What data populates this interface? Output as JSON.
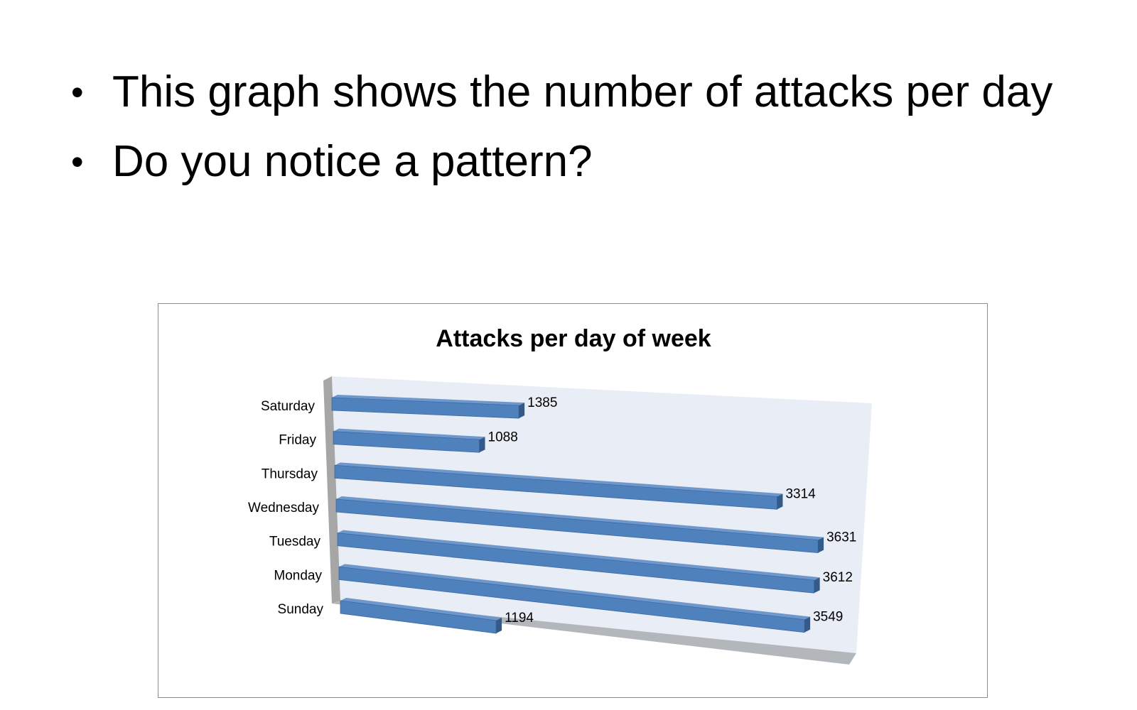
{
  "slide": {
    "bullets": [
      "This graph shows the number of attacks per day",
      "Do you notice a pattern?"
    ]
  },
  "colors": {
    "bar_front": "#4f81bd",
    "bar_top": "#6e97cc",
    "bar_side": "#345a8a",
    "back_wall": "#e9edf6",
    "side_wall": "#a6a6a6",
    "floor": "#b3b6ba"
  },
  "chart_data": {
    "type": "bar",
    "orientation": "horizontal",
    "style": "3d",
    "title": "Attacks per day of week",
    "categories": [
      "Saturday",
      "Friday",
      "Thursday",
      "Wednesday",
      "Tuesday",
      "Monday",
      "Sunday"
    ],
    "values": [
      1385,
      1088,
      3314,
      3631,
      3612,
      3549,
      1194
    ],
    "xlim": [
      0,
      4000
    ],
    "legend": "none",
    "data_labels": true
  }
}
